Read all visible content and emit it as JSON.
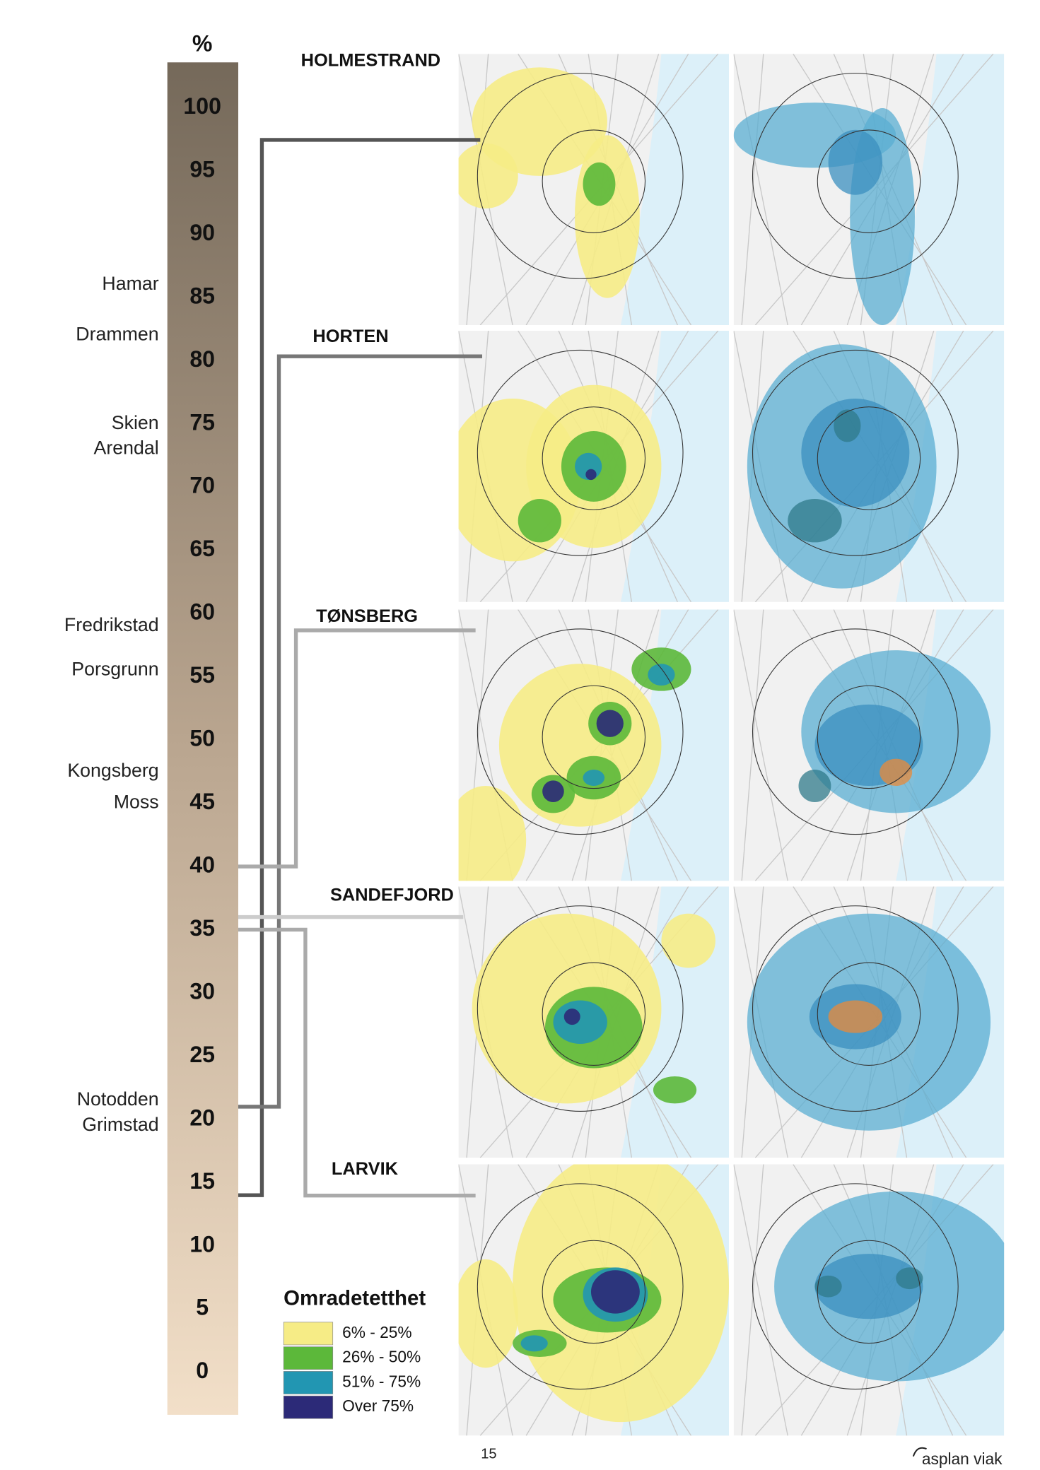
{
  "scale": {
    "unit": "%",
    "ticks": [
      100,
      95,
      90,
      85,
      80,
      75,
      70,
      65,
      60,
      55,
      50,
      45,
      40,
      35,
      30,
      25,
      20,
      15,
      10,
      5,
      0
    ],
    "cities": [
      {
        "label": "Hamar",
        "value": 86
      },
      {
        "label": "Drammen",
        "value": 82
      },
      {
        "label": "Skien",
        "value": 75
      },
      {
        "label": "Arendal",
        "value": 73
      },
      {
        "label": "Fredrikstad",
        "value": 59
      },
      {
        "label": "Porsgrunn",
        "value": 55.5
      },
      {
        "label": "Kongsberg",
        "value": 47.5
      },
      {
        "label": "Moss",
        "value": 45
      },
      {
        "label": "Notodden",
        "value": 21.5
      },
      {
        "label": "Grimstad",
        "value": 19.5
      }
    ]
  },
  "towns": [
    {
      "label": "HOLMESTRAND",
      "value": 14
    },
    {
      "label": "HORTEN",
      "value": 21
    },
    {
      "label": "TØNSBERG",
      "value": 40
    },
    {
      "label": "SANDEFJORD",
      "value": 36
    },
    {
      "label": "LARVIK",
      "value": 35
    }
  ],
  "legend": {
    "title": "Omradetetthet",
    "items": [
      {
        "label": "6% - 25%",
        "color": "#f6ec86"
      },
      {
        "label": "26% - 50%",
        "color": "#5cb83a"
      },
      {
        "label": "51% - 75%",
        "color": "#2296b2"
      },
      {
        "label": "Over 75%",
        "color": "#2c2a78"
      }
    ]
  },
  "footer": {
    "page": "15",
    "logo": "asplan viak"
  }
}
